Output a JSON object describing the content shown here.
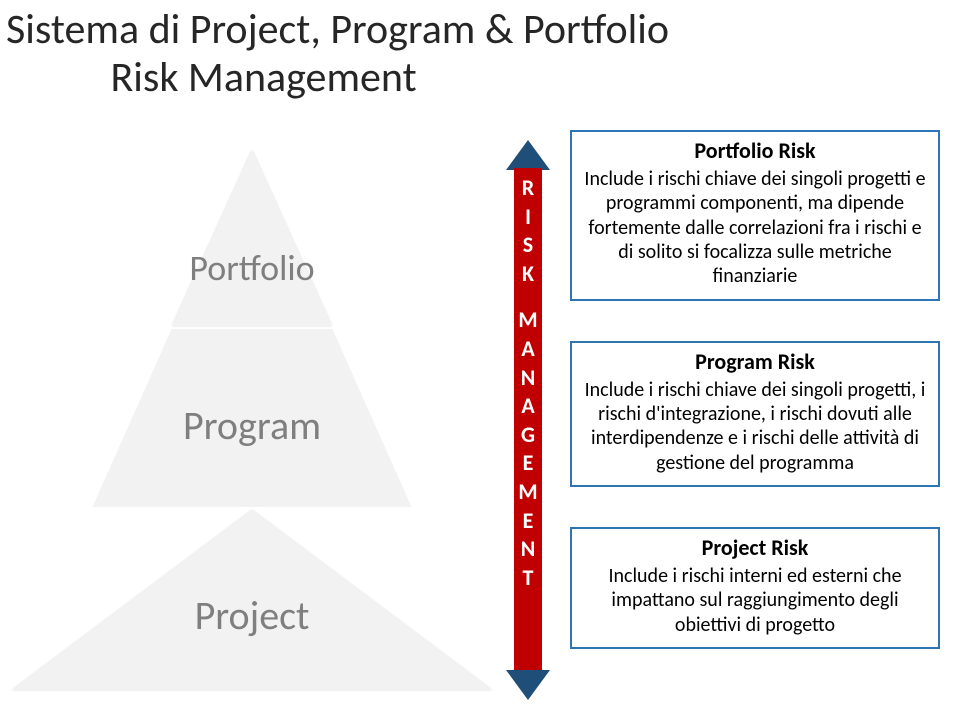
{
  "title_line1": "Sistema di Project, Program & Portfolio",
  "title_line2": "Risk Management",
  "pyramid": {
    "level1": "Portfolio",
    "level2": "Program",
    "level3": "Project",
    "fill_color": "#f2f2f2",
    "label_color": "#7f7f7f"
  },
  "arrow": {
    "word1": "RISK",
    "word2": "MANAGEMENT",
    "body_color": "#c00000",
    "head_color": "#1f4e79",
    "text_color": "#ffffff"
  },
  "boxes": {
    "border_color": "#2e75b6",
    "portfolio": {
      "title": "Portfolio Risk",
      "body": "Include i rischi chiave dei singoli progetti e programmi componenti, ma dipende fortemente dalle correlazioni fra i rischi e di solito si focalizza sulle metriche finanziarie"
    },
    "program": {
      "title": "Program Risk",
      "body": "Include i rischi chiave dei singoli progetti, i rischi d'integrazione, i rischi dovuti alle interdipendenze e i rischi delle attività di gestione del programma"
    },
    "project": {
      "title": "Project Risk",
      "body": "Include i rischi interni ed esterni che impattano sul raggiungimento degli obiettivi di progetto"
    }
  }
}
